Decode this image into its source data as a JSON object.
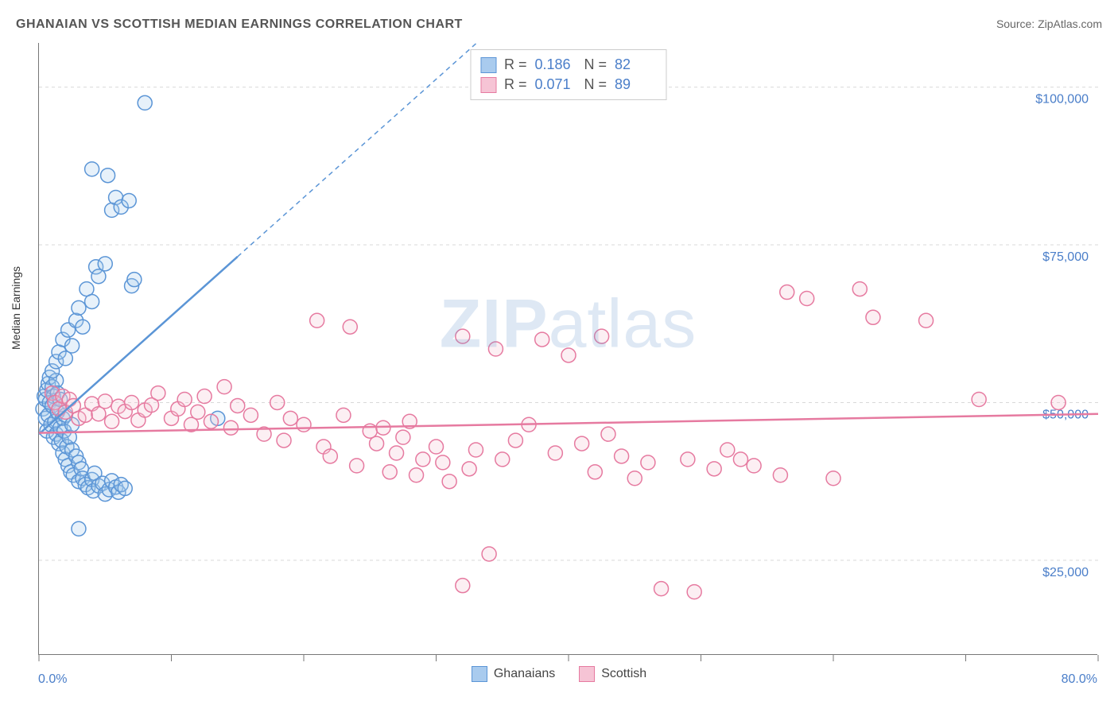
{
  "title": "GHANAIAN VS SCOTTISH MEDIAN EARNINGS CORRELATION CHART",
  "source": "Source: ZipAtlas.com",
  "watermark_primary": "ZIP",
  "watermark_secondary": "atlas",
  "ylabel": "Median Earnings",
  "chart": {
    "type": "scatter",
    "background_color": "#ffffff",
    "grid_color": "#d9d9d9",
    "grid_dash": "4,4",
    "axis_color": "#777777",
    "xlim": [
      0,
      80
    ],
    "ylim": [
      10000,
      107000
    ],
    "xticks": [
      0,
      10,
      20,
      30,
      40,
      50,
      60,
      70,
      80
    ],
    "yticks": [
      25000,
      50000,
      75000,
      100000
    ],
    "ytick_labels": [
      "$25,000",
      "$50,000",
      "$75,000",
      "$100,000"
    ],
    "xtick_labels_ends": [
      "0.0%",
      "80.0%"
    ],
    "tick_label_color": "#4a7ec9",
    "tick_label_fontsize": 16,
    "marker_radius": 9,
    "marker_stroke_width": 1.5,
    "marker_fill_opacity": 0.28,
    "watermark_color": "#6b9ad0",
    "watermark_opacity": 0.22,
    "watermark_fontsize": 86
  },
  "series": [
    {
      "name": "Ghanaians",
      "color": "#5b95d6",
      "fill": "#a9cbee",
      "R_label": "R =",
      "R": "0.186",
      "N_label": "N =",
      "N": "82",
      "trend": {
        "x1": 0,
        "y1": 45000,
        "x2": 80,
        "y2": 195000,
        "solid_until_x": 15
      },
      "points": [
        [
          0.3,
          49000
        ],
        [
          0.4,
          51000
        ],
        [
          0.5,
          47500
        ],
        [
          0.5,
          50500
        ],
        [
          0.6,
          52000
        ],
        [
          0.6,
          45500
        ],
        [
          0.7,
          53000
        ],
        [
          0.7,
          48000
        ],
        [
          0.8,
          50000
        ],
        [
          0.8,
          54000
        ],
        [
          0.9,
          46500
        ],
        [
          1.0,
          49500
        ],
        [
          1.0,
          52500
        ],
        [
          1.1,
          44500
        ],
        [
          1.1,
          51000
        ],
        [
          1.2,
          47000
        ],
        [
          1.2,
          50000
        ],
        [
          1.3,
          53500
        ],
        [
          1.3,
          45000
        ],
        [
          1.4,
          48500
        ],
        [
          1.4,
          51500
        ],
        [
          1.5,
          49000
        ],
        [
          1.5,
          43500
        ],
        [
          1.6,
          46000
        ],
        [
          1.6,
          50500
        ],
        [
          1.7,
          44000
        ],
        [
          1.8,
          47500
        ],
        [
          1.8,
          42000
        ],
        [
          1.9,
          45500
        ],
        [
          2.0,
          41000
        ],
        [
          2.0,
          48000
        ],
        [
          2.1,
          43000
        ],
        [
          2.2,
          40000
        ],
        [
          2.3,
          44500
        ],
        [
          2.4,
          39000
        ],
        [
          2.5,
          42500
        ],
        [
          2.5,
          46500
        ],
        [
          2.6,
          38500
        ],
        [
          2.8,
          41500
        ],
        [
          3.0,
          40500
        ],
        [
          3.0,
          37500
        ],
        [
          3.2,
          39500
        ],
        [
          3.3,
          38000
        ],
        [
          3.5,
          37000
        ],
        [
          3.7,
          36500
        ],
        [
          4.0,
          37800
        ],
        [
          4.1,
          36000
        ],
        [
          4.2,
          38800
        ],
        [
          4.5,
          36800
        ],
        [
          4.8,
          37200
        ],
        [
          5.0,
          35500
        ],
        [
          5.3,
          36200
        ],
        [
          5.5,
          37600
        ],
        [
          5.8,
          36600
        ],
        [
          6.0,
          35800
        ],
        [
          6.2,
          37000
        ],
        [
          6.5,
          36400
        ],
        [
          1.0,
          55000
        ],
        [
          1.3,
          56500
        ],
        [
          1.5,
          58000
        ],
        [
          1.8,
          60000
        ],
        [
          2.0,
          57000
        ],
        [
          2.2,
          61500
        ],
        [
          2.5,
          59000
        ],
        [
          2.8,
          63000
        ],
        [
          3.0,
          65000
        ],
        [
          3.3,
          62000
        ],
        [
          3.6,
          68000
        ],
        [
          4.0,
          66000
        ],
        [
          4.3,
          71500
        ],
        [
          4.5,
          70000
        ],
        [
          5.0,
          72000
        ],
        [
          5.5,
          80500
        ],
        [
          5.8,
          82500
        ],
        [
          6.2,
          81000
        ],
        [
          6.8,
          82000
        ],
        [
          7.0,
          68500
        ],
        [
          7.2,
          69500
        ],
        [
          4.0,
          87000
        ],
        [
          5.2,
          86000
        ],
        [
          8.0,
          97500
        ],
        [
          3.0,
          30000
        ],
        [
          13.5,
          47500
        ]
      ]
    },
    {
      "name": "Scottish",
      "color": "#e67aa0",
      "fill": "#f6c4d5",
      "R_label": "R =",
      "R": "0.071",
      "N_label": "N =",
      "N": "89",
      "trend": {
        "x1": 0,
        "y1": 45200,
        "x2": 80,
        "y2": 48200,
        "solid_until_x": 80
      },
      "points": [
        [
          1.0,
          51500
        ],
        [
          1.2,
          50000
        ],
        [
          1.5,
          49000
        ],
        [
          1.8,
          51000
        ],
        [
          2.0,
          48500
        ],
        [
          2.3,
          50500
        ],
        [
          2.6,
          49500
        ],
        [
          3.0,
          47500
        ],
        [
          3.5,
          48000
        ],
        [
          4.0,
          49800
        ],
        [
          4.5,
          48200
        ],
        [
          5.0,
          50200
        ],
        [
          5.5,
          47000
        ],
        [
          6.0,
          49400
        ],
        [
          6.5,
          48600
        ],
        [
          7.0,
          50000
        ],
        [
          7.5,
          47200
        ],
        [
          8.0,
          48800
        ],
        [
          8.5,
          49600
        ],
        [
          9.0,
          51500
        ],
        [
          10.0,
          47500
        ],
        [
          10.5,
          49000
        ],
        [
          11.0,
          50500
        ],
        [
          11.5,
          46500
        ],
        [
          12.0,
          48500
        ],
        [
          12.5,
          51000
        ],
        [
          13.0,
          47000
        ],
        [
          14.0,
          52500
        ],
        [
          14.5,
          46000
        ],
        [
          15.0,
          49500
        ],
        [
          16.0,
          48000
        ],
        [
          17.0,
          45000
        ],
        [
          18.0,
          50000
        ],
        [
          18.5,
          44000
        ],
        [
          19.0,
          47500
        ],
        [
          20.0,
          46500
        ],
        [
          21.0,
          63000
        ],
        [
          21.5,
          43000
        ],
        [
          22.0,
          41500
        ],
        [
          23.0,
          48000
        ],
        [
          23.5,
          62000
        ],
        [
          24.0,
          40000
        ],
        [
          25.0,
          45500
        ],
        [
          25.5,
          43500
        ],
        [
          26.0,
          46000
        ],
        [
          26.5,
          39000
        ],
        [
          27.0,
          42000
        ],
        [
          27.5,
          44500
        ],
        [
          28.0,
          47000
        ],
        [
          28.5,
          38500
        ],
        [
          29.0,
          41000
        ],
        [
          30.0,
          43000
        ],
        [
          30.5,
          40500
        ],
        [
          31.0,
          37500
        ],
        [
          32.0,
          60500
        ],
        [
          32.5,
          39500
        ],
        [
          33.0,
          42500
        ],
        [
          34.0,
          26000
        ],
        [
          34.5,
          58500
        ],
        [
          35.0,
          41000
        ],
        [
          36.0,
          44000
        ],
        [
          37.0,
          46500
        ],
        [
          38.0,
          60000
        ],
        [
          39.0,
          42000
        ],
        [
          40.0,
          57500
        ],
        [
          41.0,
          43500
        ],
        [
          42.0,
          39000
        ],
        [
          43.0,
          45000
        ],
        [
          44.0,
          41500
        ],
        [
          45.0,
          38000
        ],
        [
          46.0,
          40500
        ],
        [
          47.0,
          20500
        ],
        [
          49.0,
          41000
        ],
        [
          49.5,
          20000
        ],
        [
          51.0,
          39500
        ],
        [
          52.0,
          42500
        ],
        [
          53.0,
          41000
        ],
        [
          54.0,
          40000
        ],
        [
          56.0,
          38500
        ],
        [
          56.5,
          67500
        ],
        [
          58.0,
          66500
        ],
        [
          60.0,
          38000
        ],
        [
          62.0,
          68000
        ],
        [
          63.0,
          63500
        ],
        [
          67.0,
          63000
        ],
        [
          71.0,
          50500
        ],
        [
          77.0,
          50000
        ],
        [
          32.0,
          21000
        ],
        [
          42.5,
          60500
        ]
      ]
    }
  ],
  "bottom_legend": [
    {
      "label": "Ghanaians",
      "swatch_fill": "#a9cbee",
      "swatch_border": "#5b95d6"
    },
    {
      "label": "Scottish",
      "swatch_fill": "#f6c4d5",
      "swatch_border": "#e67aa0"
    }
  ]
}
